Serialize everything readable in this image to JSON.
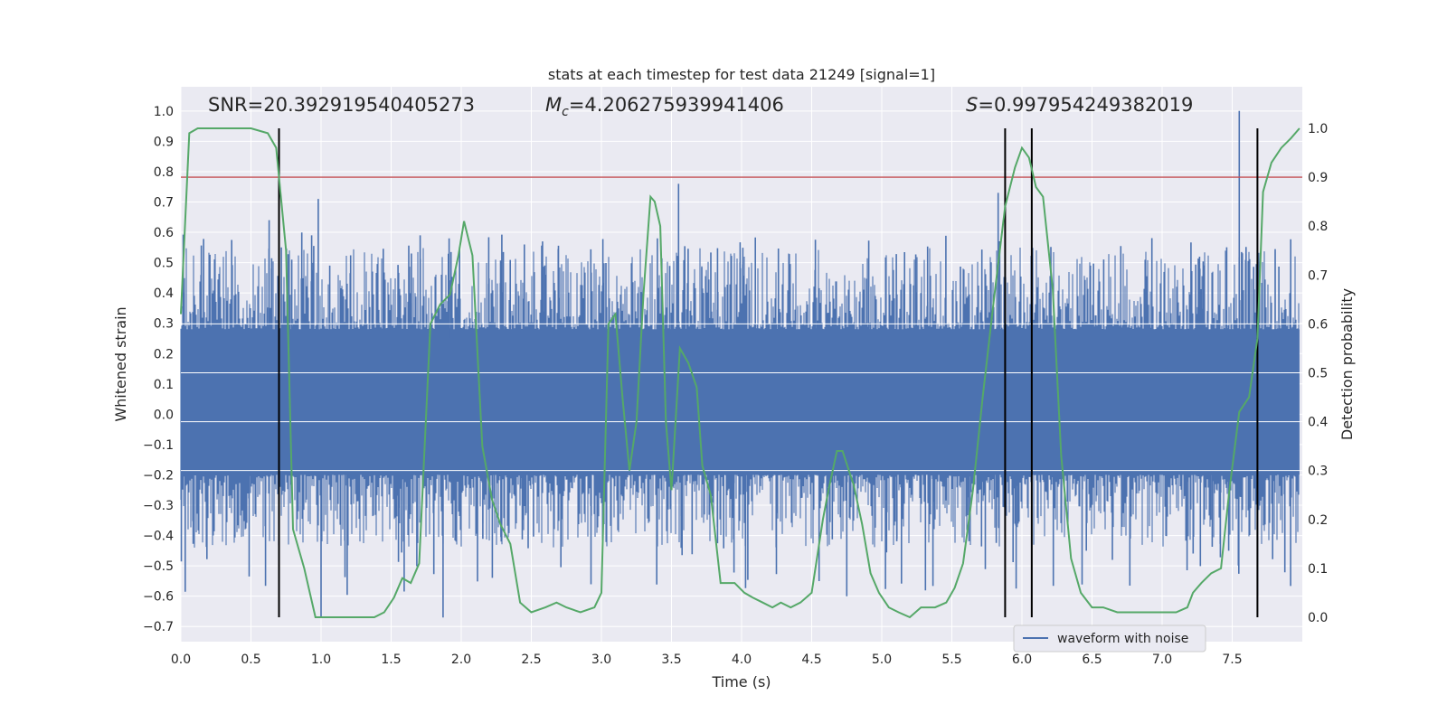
{
  "chart_data": {
    "type": "line",
    "title": "stats at each timestep for test data 21249 [signal=1]",
    "xlabel": "Time (s)",
    "ylabel_left": "Whitened strain",
    "ylabel_right": "Detection probability",
    "xlim": [
      0.0,
      8.0
    ],
    "ylim_left": [
      -0.75,
      1.08
    ],
    "ylim_right": [
      -0.05,
      1.085
    ],
    "x_ticks": [
      0.0,
      0.5,
      1.0,
      1.5,
      2.0,
      2.5,
      3.0,
      3.5,
      4.0,
      4.5,
      5.0,
      5.5,
      6.0,
      6.5,
      7.0,
      7.5
    ],
    "x_tick_labels": [
      "0.0",
      "0.5",
      "1.0",
      "1.5",
      "2.0",
      "2.5",
      "3.0",
      "3.5",
      "4.0",
      "4.5",
      "5.0",
      "5.5",
      "6.0",
      "6.5",
      "7.0",
      "7.5"
    ],
    "y_left_ticks": [
      1.0,
      0.9,
      0.8,
      0.7,
      0.6,
      0.5,
      0.4,
      0.3,
      0.2,
      0.1,
      0.0,
      -0.1,
      -0.2,
      -0.3,
      -0.4,
      -0.5,
      -0.6,
      -0.7
    ],
    "y_left_tick_labels": [
      "1.0",
      "0.9",
      "0.8",
      "0.7",
      "0.6",
      "0.5",
      "0.4",
      "0.3",
      "0.2",
      "0.1",
      "0.0",
      "−0.1",
      "−0.2",
      "−0.3",
      "−0.4",
      "−0.5",
      "−0.6",
      "−0.7"
    ],
    "y_right_ticks": [
      1.0,
      0.9,
      0.8,
      0.7,
      0.6,
      0.5,
      0.4,
      0.3,
      0.2,
      0.1,
      0.0
    ],
    "y_right_tick_labels": [
      "1.0",
      "0.9",
      "0.8",
      "0.7",
      "0.6",
      "0.5",
      "0.4",
      "0.3",
      "0.2",
      "0.1",
      "0.0"
    ],
    "annotations": {
      "snr": "SNR=20.392919540405273",
      "mc_symbol": "M",
      "mc_sub": "c",
      "mc_value": "=4.206275939941406",
      "s_symbol": "S",
      "s_value": "=0.997954249382019"
    },
    "series": [
      {
        "name": "waveform with noise",
        "axis": "left",
        "color": "#4c72b0",
        "kind": "noise-band",
        "core_range": [
          -0.2,
          0.28
        ],
        "peak_range": [
          -0.67,
          1.0
        ],
        "spikes": [
          {
            "x": 0.98,
            "y": 0.71
          },
          {
            "x": 1.0,
            "y": -0.67
          },
          {
            "x": 0.63,
            "y": 0.64
          },
          {
            "x": 1.87,
            "y": -0.67
          },
          {
            "x": 2.45,
            "y": 0.56
          },
          {
            "x": 2.58,
            "y": 0.57
          },
          {
            "x": 3.55,
            "y": 0.76
          },
          {
            "x": 5.83,
            "y": 0.73
          },
          {
            "x": 7.55,
            "y": 1.0
          },
          {
            "x": 7.68,
            "y": -0.6
          },
          {
            "x": 4.75,
            "y": -0.6
          },
          {
            "x": 0.7,
            "y": -0.63
          }
        ]
      },
      {
        "name": "detection probability",
        "axis": "right",
        "color": "#55a868",
        "x": [
          0.0,
          0.06,
          0.12,
          0.2,
          0.3,
          0.4,
          0.5,
          0.62,
          0.68,
          0.75,
          0.8,
          0.88,
          0.96,
          1.1,
          1.25,
          1.38,
          1.45,
          1.52,
          1.58,
          1.64,
          1.7,
          1.78,
          1.85,
          1.92,
          1.98,
          2.02,
          2.08,
          2.15,
          2.22,
          2.28,
          2.35,
          2.42,
          2.5,
          2.6,
          2.68,
          2.75,
          2.85,
          2.95,
          3.0,
          3.05,
          3.1,
          3.15,
          3.2,
          3.25,
          3.3,
          3.35,
          3.38,
          3.42,
          3.46,
          3.5,
          3.56,
          3.62,
          3.68,
          3.72,
          3.78,
          3.85,
          3.95,
          4.02,
          4.08,
          4.15,
          4.22,
          4.28,
          4.35,
          4.42,
          4.5,
          4.58,
          4.62,
          4.68,
          4.72,
          4.8,
          4.86,
          4.92,
          4.98,
          5.05,
          5.12,
          5.2,
          5.28,
          5.38,
          5.46,
          5.52,
          5.58,
          5.65,
          5.72,
          5.8,
          5.88,
          5.95,
          6.0,
          6.05,
          6.1,
          6.15,
          6.22,
          6.28,
          6.35,
          6.42,
          6.5,
          6.58,
          6.68,
          6.78,
          6.88,
          6.98,
          7.1,
          7.18,
          7.22,
          7.28,
          7.35,
          7.42,
          7.48,
          7.55,
          7.62,
          7.68,
          7.72,
          7.78,
          7.85,
          7.92,
          7.98
        ],
        "y": [
          0.62,
          0.99,
          1.0,
          1.0,
          1.0,
          1.0,
          1.0,
          0.99,
          0.96,
          0.75,
          0.18,
          0.1,
          0.0,
          0.0,
          0.0,
          0.0,
          0.01,
          0.04,
          0.08,
          0.07,
          0.11,
          0.6,
          0.64,
          0.66,
          0.74,
          0.81,
          0.74,
          0.35,
          0.24,
          0.19,
          0.15,
          0.03,
          0.01,
          0.02,
          0.03,
          0.02,
          0.01,
          0.02,
          0.05,
          0.6,
          0.62,
          0.45,
          0.3,
          0.4,
          0.66,
          0.86,
          0.85,
          0.8,
          0.4,
          0.26,
          0.55,
          0.52,
          0.47,
          0.31,
          0.25,
          0.07,
          0.07,
          0.05,
          0.04,
          0.03,
          0.02,
          0.03,
          0.02,
          0.03,
          0.05,
          0.2,
          0.26,
          0.34,
          0.34,
          0.27,
          0.19,
          0.09,
          0.05,
          0.02,
          0.01,
          0.0,
          0.02,
          0.02,
          0.03,
          0.06,
          0.11,
          0.26,
          0.45,
          0.65,
          0.84,
          0.92,
          0.96,
          0.94,
          0.88,
          0.86,
          0.67,
          0.33,
          0.12,
          0.05,
          0.02,
          0.02,
          0.01,
          0.01,
          0.01,
          0.01,
          0.01,
          0.02,
          0.05,
          0.07,
          0.09,
          0.1,
          0.26,
          0.42,
          0.45,
          0.57,
          0.87,
          0.93,
          0.96,
          0.98,
          1.0
        ]
      }
    ],
    "threshold": {
      "axis": "right",
      "value": 0.9,
      "color": "#c44e52"
    },
    "vertical_markers": [
      0.7,
      5.88,
      6.07,
      7.68
    ],
    "legend": {
      "label": "waveform with noise",
      "placement": "lower-right"
    }
  }
}
